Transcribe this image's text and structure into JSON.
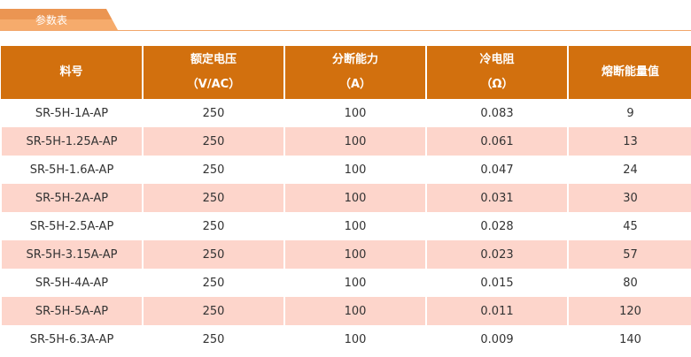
{
  "tab": {
    "label": "参数表"
  },
  "headers": [
    [
      "料号",
      ""
    ],
    [
      "额定电压",
      "（V/AC）"
    ],
    [
      "分断能力",
      "（A）"
    ],
    [
      "冷电阻",
      "（Ω）"
    ],
    [
      "熔断能量值",
      ""
    ]
  ],
  "rows": [
    [
      "SR-5H-1A-AP",
      "250",
      "100",
      "0.083",
      "9"
    ],
    [
      "SR-5H-1.25A-AP",
      "250",
      "100",
      "0.061",
      "13"
    ],
    [
      "SR-5H-1.6A-AP",
      "250",
      "100",
      "0.047",
      "24"
    ],
    [
      "SR-5H-2A-AP",
      "250",
      "100",
      "0.031",
      "30"
    ],
    [
      "SR-5H-2.5A-AP",
      "250",
      "100",
      "0.028",
      "45"
    ],
    [
      "SR-5H-3.15A-AP",
      "250",
      "100",
      "0.023",
      "57"
    ],
    [
      "SR-5H-4A-AP",
      "250",
      "100",
      "0.015",
      "80"
    ],
    [
      "SR-5H-5A-AP",
      "250",
      "100",
      "0.011",
      "120"
    ],
    [
      "SR-5H-6.3A-AP",
      "250",
      "100",
      "0.009",
      "140"
    ]
  ],
  "colors": {
    "header": "#d2700e",
    "alt_row": "#fdd5cb",
    "tab": "#eb9552"
  }
}
